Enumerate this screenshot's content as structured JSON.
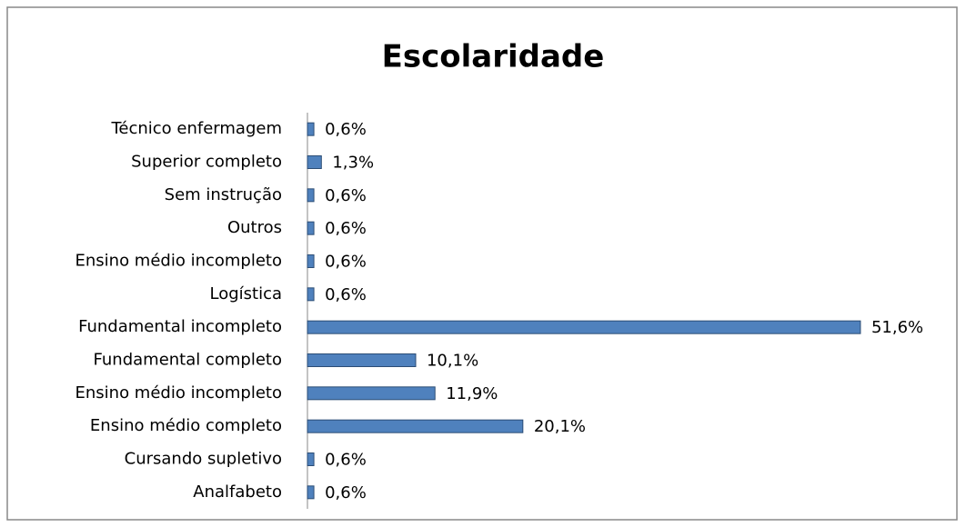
{
  "chart_data": {
    "type": "bar",
    "orientation": "horizontal",
    "title": "Escolaridade",
    "categories": [
      "Técnico enfermagem",
      "Superior completo",
      "Sem instrução",
      "Outros",
      "Ensino médio incompleto",
      "Logística",
      "Fundamental incompleto",
      "Fundamental completo",
      "Ensino médio incompleto",
      "Ensino médio completo",
      "Cursando supletivo",
      "Analfabeto"
    ],
    "values": [
      0.6,
      1.3,
      0.6,
      0.6,
      0.6,
      0.6,
      51.6,
      10.1,
      11.9,
      20.1,
      0.6,
      0.6
    ],
    "value_labels": [
      "0,6%",
      "1,3%",
      "0,6%",
      "0,6%",
      "0,6%",
      "0,6%",
      "51,6%",
      "10,1%",
      "11,9%",
      "20,1%",
      "0,6%",
      "0,6%"
    ],
    "color": "#4f81bd",
    "xlim": [
      0,
      55
    ]
  }
}
